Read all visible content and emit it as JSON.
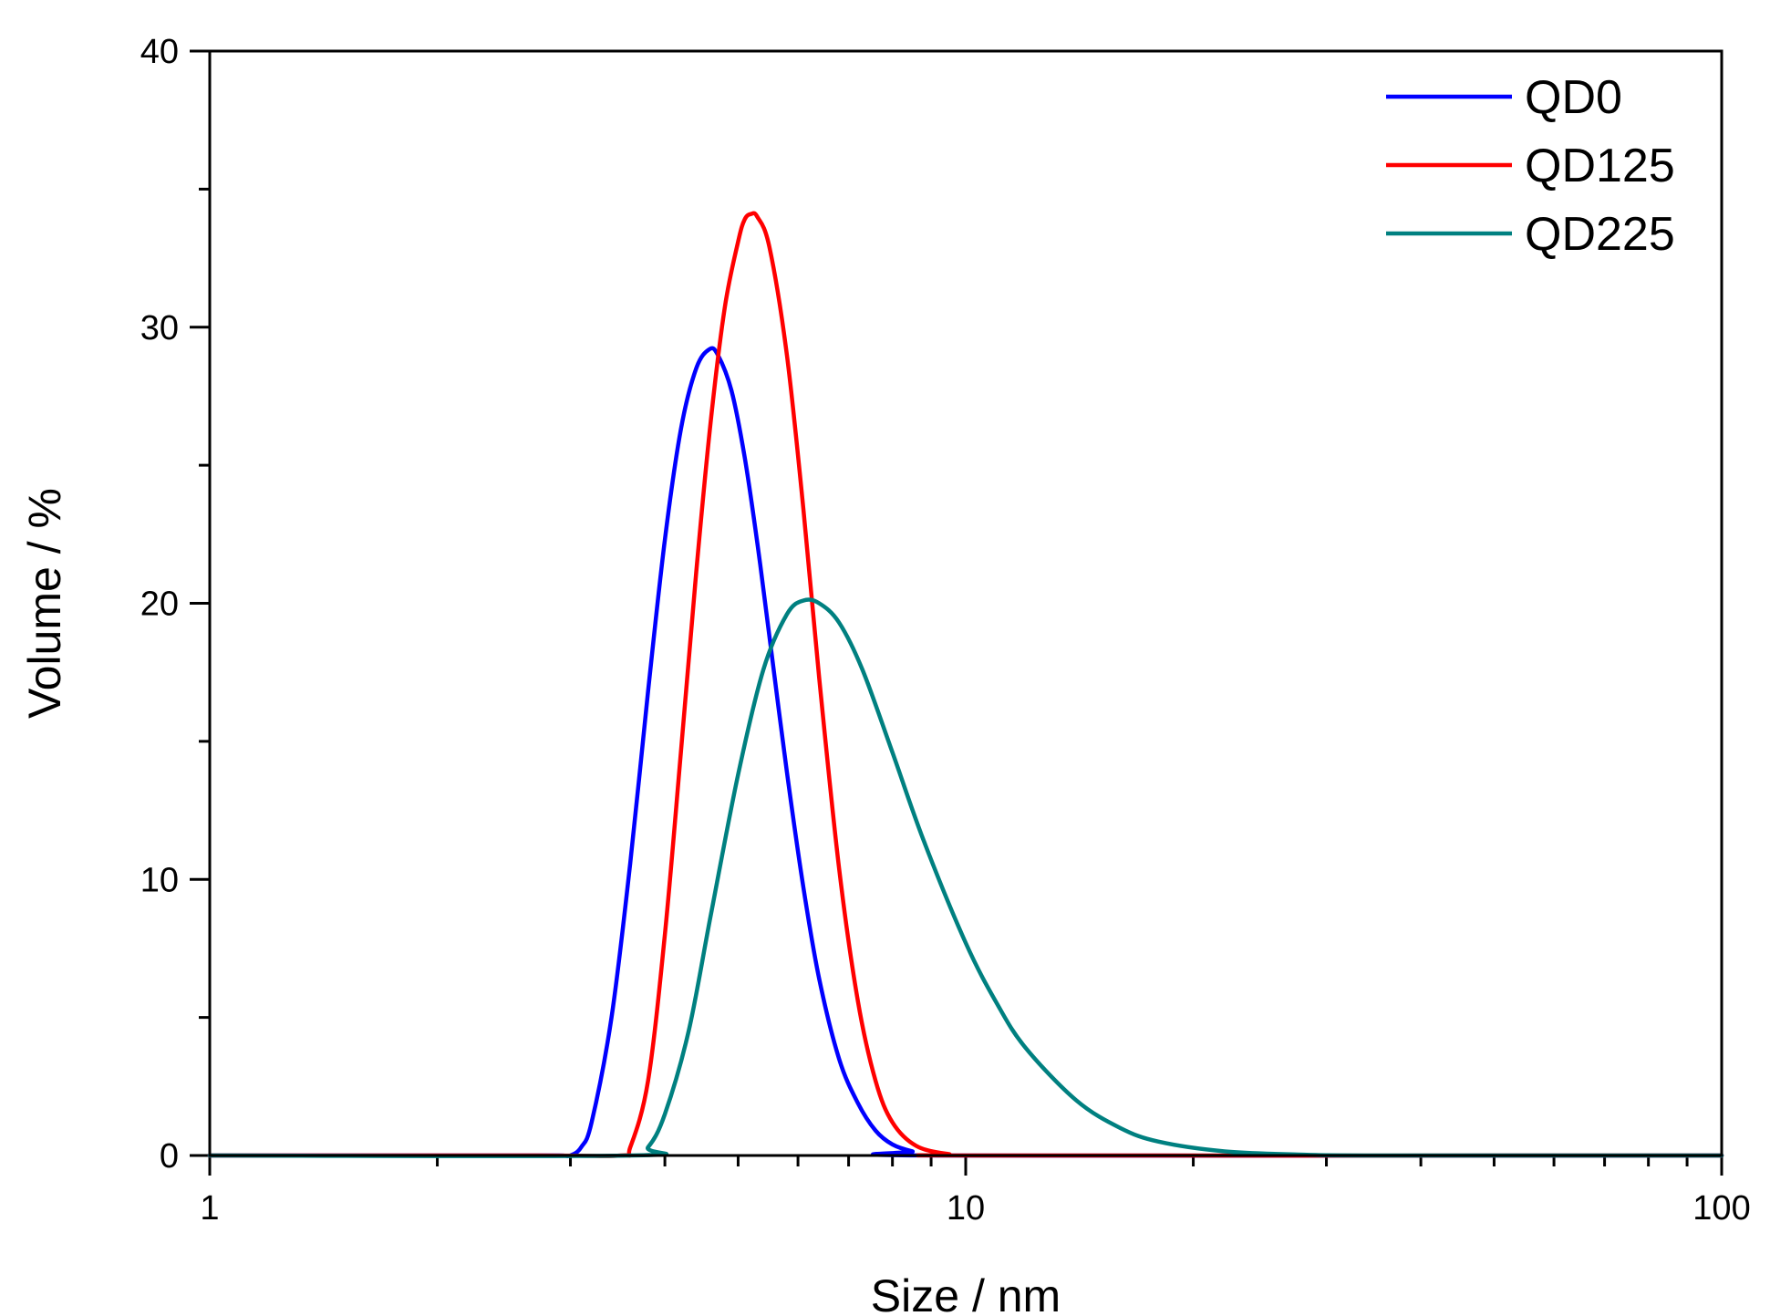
{
  "chart_data": {
    "type": "line",
    "xlabel": "Size / nm",
    "ylabel": "Volume / %",
    "xscale": "log",
    "xlim": [
      1,
      100
    ],
    "ylim": [
      0,
      40
    ],
    "x_ticks": [
      "1",
      "10",
      "100"
    ],
    "y_ticks": [
      "0",
      "10",
      "20",
      "30",
      "40"
    ],
    "grid": false,
    "legend_position": "top-right",
    "series": [
      {
        "name": "QD0",
        "color": "#0000ff",
        "points": [
          [
            1,
            0
          ],
          [
            2.5,
            0
          ],
          [
            2.9,
            0
          ],
          [
            3.0,
            0
          ],
          [
            3.1,
            0.3
          ],
          [
            3.2,
            1.2
          ],
          [
            3.4,
            5.0
          ],
          [
            3.6,
            10.6
          ],
          [
            3.8,
            16.8
          ],
          [
            4.0,
            22.3
          ],
          [
            4.2,
            26.3
          ],
          [
            4.4,
            28.5
          ],
          [
            4.58,
            29.2
          ],
          [
            4.7,
            29.0
          ],
          [
            4.9,
            27.7
          ],
          [
            5.1,
            25.3
          ],
          [
            5.3,
            22.2
          ],
          [
            5.5,
            18.8
          ],
          [
            5.8,
            13.9
          ],
          [
            6.1,
            9.7
          ],
          [
            6.4,
            6.4
          ],
          [
            6.8,
            3.5
          ],
          [
            7.2,
            1.9
          ],
          [
            7.6,
            0.9
          ],
          [
            8.0,
            0.4
          ],
          [
            8.5,
            0.15
          ],
          [
            9.2,
            0
          ],
          [
            100,
            0
          ]
        ]
      },
      {
        "name": "QD125",
        "color": "#ff0000",
        "points": [
          [
            1,
            0
          ],
          [
            2.7,
            0
          ],
          [
            3.5,
            0
          ],
          [
            3.6,
            0.3
          ],
          [
            3.8,
            2.7
          ],
          [
            4.0,
            8.0
          ],
          [
            4.2,
            14.6
          ],
          [
            4.4,
            21.1
          ],
          [
            4.6,
            26.6
          ],
          [
            4.8,
            30.7
          ],
          [
            5.0,
            33.1
          ],
          [
            5.1,
            33.9
          ],
          [
            5.2,
            34.1
          ],
          [
            5.3,
            34.0
          ],
          [
            5.5,
            32.9
          ],
          [
            5.8,
            29.0
          ],
          [
            6.1,
            23.4
          ],
          [
            6.4,
            17.3
          ],
          [
            6.8,
            10.4
          ],
          [
            7.2,
            5.6
          ],
          [
            7.6,
            2.7
          ],
          [
            8.0,
            1.2
          ],
          [
            8.6,
            0.35
          ],
          [
            9.5,
            0.05
          ],
          [
            10.5,
            0
          ],
          [
            100,
            0
          ]
        ]
      },
      {
        "name": "QD225",
        "color": "#008080",
        "points": [
          [
            1,
            0
          ],
          [
            3.6,
            0
          ],
          [
            3.8,
            0.3
          ],
          [
            4.0,
            1.5
          ],
          [
            4.3,
            4.5
          ],
          [
            4.6,
            8.7
          ],
          [
            5.0,
            13.8
          ],
          [
            5.4,
            17.6
          ],
          [
            5.8,
            19.6
          ],
          [
            6.1,
            20.1
          ],
          [
            6.4,
            20.0
          ],
          [
            6.8,
            19.3
          ],
          [
            7.3,
            17.6
          ],
          [
            8.0,
            14.6
          ],
          [
            8.8,
            11.4
          ],
          [
            10,
            7.7
          ],
          [
            11,
            5.5
          ],
          [
            12,
            3.9
          ],
          [
            14,
            2.0
          ],
          [
            16,
            1.0
          ],
          [
            18,
            0.5
          ],
          [
            22,
            0.15
          ],
          [
            28,
            0.03
          ],
          [
            35,
            0
          ],
          [
            100,
            0
          ]
        ]
      }
    ]
  }
}
